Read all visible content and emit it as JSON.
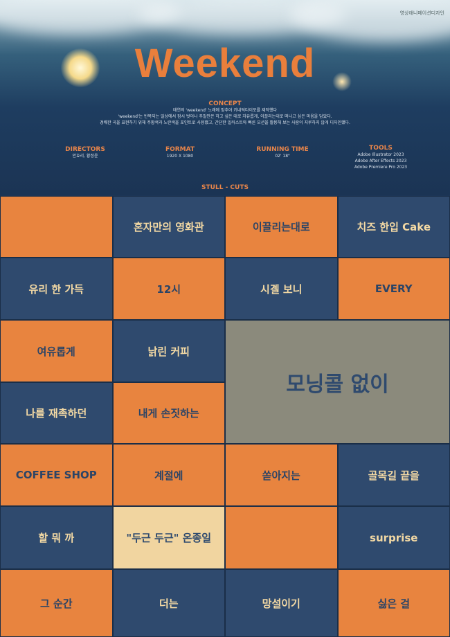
{
  "header": {
    "subject": "영상애니메이션디자인",
    "title": "Weekend"
  },
  "concept": {
    "heading": "CONCEPT",
    "lines": [
      "태연의 'weekend' 노래에 맞추어 키네틱타이포를 제작했다",
      "'weekend'는 반복되는 일상에서 잠시 벗어나 주말만은 하고 싶은 대로 자유롭게, 이끌리는대로 떠나고 싶은 마음을 담았다.",
      "경쾌한 곡을 표현하기 위해 주황색과 노란색을 포인트로 사용했고, 간단한 일러스트와 빠른 모션을 활용해 보는 사람이 지루하지 않게 디자인했다."
    ]
  },
  "meta": [
    {
      "heading": "DIRECTORS",
      "lines": [
        "안효리, 황정윤"
      ]
    },
    {
      "heading": "FORMAT",
      "lines": [
        "1920  X 1080"
      ]
    },
    {
      "heading": "RUNNING TIME",
      "lines": [
        "02' 18\""
      ]
    },
    {
      "heading": "TOOLS",
      "lines": [
        "Adobe Illustrator 2023",
        "Adobe After Effects 2023",
        "Adobe Premiere Pro 2023"
      ]
    }
  ],
  "cuts_heading": "STULL - CUTS",
  "cuts": [
    "",
    "혼자만의 영화관",
    "이끌리는대로",
    "치즈 한입 Cake",
    "유리 한 가득",
    "12시",
    "시곌 보니",
    "EVERY",
    "여유롭게",
    "낡린 커피",
    "모닝콜 없이",
    "나를 재촉하던",
    "내게 손짓하는",
    "COFFEE SHOP",
    "계절에",
    "쏟아지는",
    "골목길 끝을",
    "할 뭐 까",
    "\"두근 두근\" 온종일",
    "",
    "surprise",
    "그 순간",
    "더는",
    "망설이기",
    "싫은 걸"
  ]
}
